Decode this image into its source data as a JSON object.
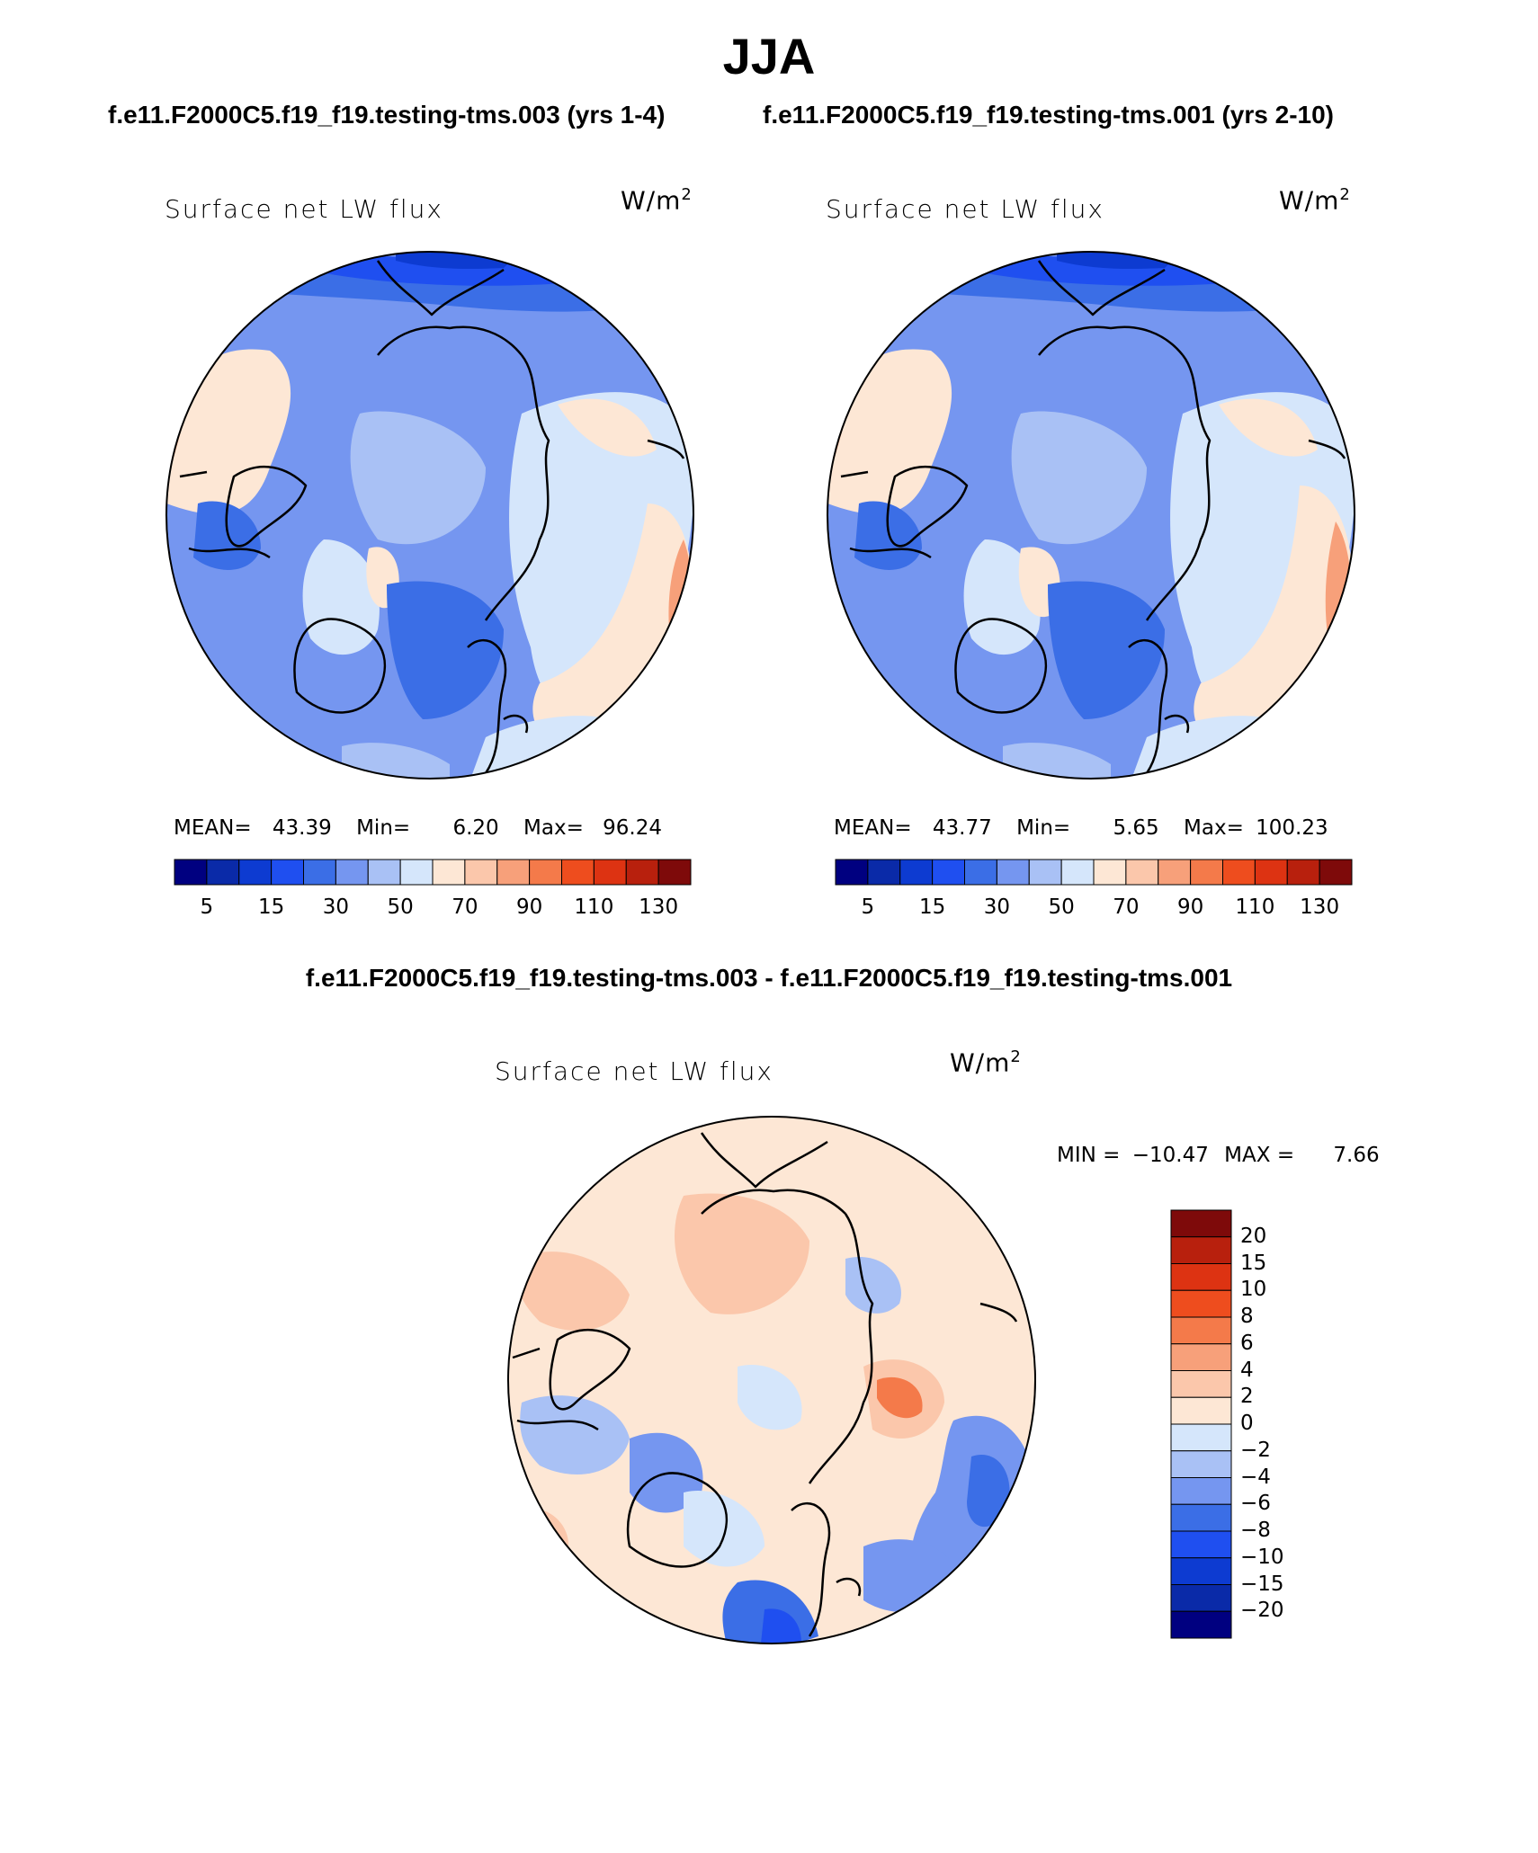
{
  "title": "JJA",
  "case_titles": {
    "left": "f.e11.F2000C5.f19_f19.testing-tms.003 (yrs 1-4)",
    "right": "f.e11.F2000C5.f19_f19.testing-tms.001 (yrs 2-10)"
  },
  "diff_title": "f.e11.F2000C5.f19_f19.testing-tms.003 - f.e11.F2000C5.f19_f19.testing-tms.001",
  "variable": "Surface net LW flux",
  "units": "W/m",
  "units_exp": "2",
  "panels": [
    {
      "id": "case1",
      "mean_label": "MEAN=",
      "mean": "43.39",
      "min_label": "Min=",
      "min": "6.20",
      "max_label": "Max=",
      "max": "96.24"
    },
    {
      "id": "case2",
      "mean_label": "MEAN=",
      "mean": "43.77",
      "min_label": "Min=",
      "min": "5.65",
      "max_label": "Max=",
      "max": "100.23"
    }
  ],
  "diff_panel": {
    "min_label": "MIN =",
    "min": "−10.47",
    "max_label": "MAX =",
    "max": "7.66"
  },
  "colorbar": {
    "colors": [
      "#000080",
      "#0a2aa8",
      "#0d3bd1",
      "#1f4ff0",
      "#3b6ee6",
      "#7596f0",
      "#a9c1f5",
      "#d5e6fb",
      "#fde7d5",
      "#fbc7ab",
      "#f7a07a",
      "#f47a4a",
      "#ee4d1e",
      "#dd3312",
      "#b8200d",
      "#7e0a0a"
    ],
    "tick_labels": [
      "5",
      "15",
      "30",
      "50",
      "70",
      "90",
      "110",
      "130"
    ]
  },
  "diff_colorbar": {
    "colors": [
      "#000080",
      "#0a2aa8",
      "#0d3bd1",
      "#1f4ff0",
      "#3b6ee6",
      "#7596f0",
      "#a9c1f5",
      "#d5e6fb",
      "#fde7d5",
      "#fbc7ab",
      "#f7a07a",
      "#f47a4a",
      "#ee4d1e",
      "#dd3312",
      "#b8200d",
      "#7e0a0a"
    ],
    "tick_labels": [
      "20",
      "15",
      "10",
      "8",
      "6",
      "4",
      "2",
      "0",
      "−2",
      "−4",
      "−6",
      "−8",
      "−10",
      "−15",
      "−20"
    ]
  }
}
